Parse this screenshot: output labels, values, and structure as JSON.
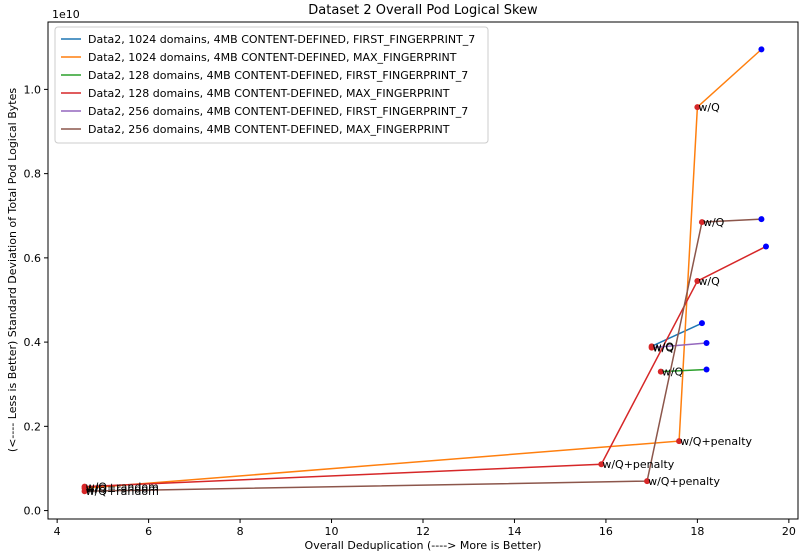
{
  "chart_data": {
    "type": "line",
    "title": "Dataset 2 Overall Pod Logical Skew",
    "xlabel": "Overall Deduplication (----> More is Better)",
    "ylabel": "(<---- Less is Better) Standard Deviation of Total Pod Logical Bytes",
    "y_offset_text": "1e10",
    "xlim": [
      3.8,
      20.2
    ],
    "ylim": [
      -0.02,
      1.16
    ],
    "x_ticks": [
      4,
      6,
      8,
      10,
      12,
      14,
      16,
      18,
      20
    ],
    "x_tick_labels": [
      "4",
      "6",
      "8",
      "10",
      "12",
      "14",
      "16",
      "18",
      "20"
    ],
    "y_ticks": [
      0.0,
      0.2,
      0.4,
      0.6,
      0.8,
      1.0
    ],
    "y_tick_labels": [
      "0.0",
      "0.2",
      "0.4",
      "0.6",
      "0.8",
      "1.0"
    ],
    "grid": false,
    "legend_position": "top-left",
    "series": [
      {
        "name": "Data2, 1024 domains, 4MB CONTENT-DEFINED, FIRST_FINGERPRINT_7",
        "color": "#1f77b4",
        "x": [
          18.1,
          17.0
        ],
        "y": [
          0.445,
          0.39
        ],
        "point_colors": [
          "#0000ff",
          "#d62728"
        ],
        "annotations": [
          "",
          "w/Q"
        ]
      },
      {
        "name": "Data2, 1024 domains, 4MB CONTENT-DEFINED, MAX_FINGERPRINT",
        "color": "#ff7f0e",
        "x": [
          19.4,
          18.0,
          17.6,
          4.6
        ],
        "y": [
          1.095,
          0.958,
          0.165,
          0.053
        ],
        "point_colors": [
          "#0000ff",
          "#d62728",
          "#d62728",
          "#d62728"
        ],
        "annotations": [
          "",
          "w/Q",
          "w/Q+penalty",
          "w/Q+random"
        ]
      },
      {
        "name": "Data2, 128 domains, 4MB CONTENT-DEFINED, FIRST_FINGERPRINT_7",
        "color": "#2ca02c",
        "x": [
          18.2,
          17.2
        ],
        "y": [
          0.335,
          0.33
        ],
        "point_colors": [
          "#0000ff",
          "#d62728"
        ],
        "annotations": [
          "",
          "w/Q"
        ]
      },
      {
        "name": "Data2, 128 domains, 4MB CONTENT-DEFINED, MAX_FINGERPRINT",
        "color": "#d62728",
        "x": [
          19.5,
          18.0,
          15.9,
          4.6
        ],
        "y": [
          0.627,
          0.545,
          0.11,
          0.057
        ],
        "point_colors": [
          "#0000ff",
          "#d62728",
          "#d62728",
          "#d62728"
        ],
        "annotations": [
          "",
          "w/Q",
          "w/Q+penalty",
          "w/Q+random"
        ]
      },
      {
        "name": "Data2, 256 domains, 4MB CONTENT-DEFINED, FIRST_FINGERPRINT_7",
        "color": "#9467bd",
        "x": [
          18.2,
          17.0
        ],
        "y": [
          0.398,
          0.387
        ],
        "point_colors": [
          "#0000ff",
          "#d62728"
        ],
        "annotations": [
          "",
          "w/Q"
        ]
      },
      {
        "name": "Data2, 256 domains, 4MB CONTENT-DEFINED, MAX_FINGERPRINT",
        "color": "#8c564b",
        "x": [
          19.4,
          18.1,
          16.9,
          4.6
        ],
        "y": [
          0.692,
          0.685,
          0.07,
          0.046
        ],
        "point_colors": [
          "#0000ff",
          "#d62728",
          "#d62728",
          "#d62728"
        ],
        "annotations": [
          "",
          "w/Q",
          "w/Q+penalty",
          "w/Q+random"
        ]
      }
    ]
  }
}
